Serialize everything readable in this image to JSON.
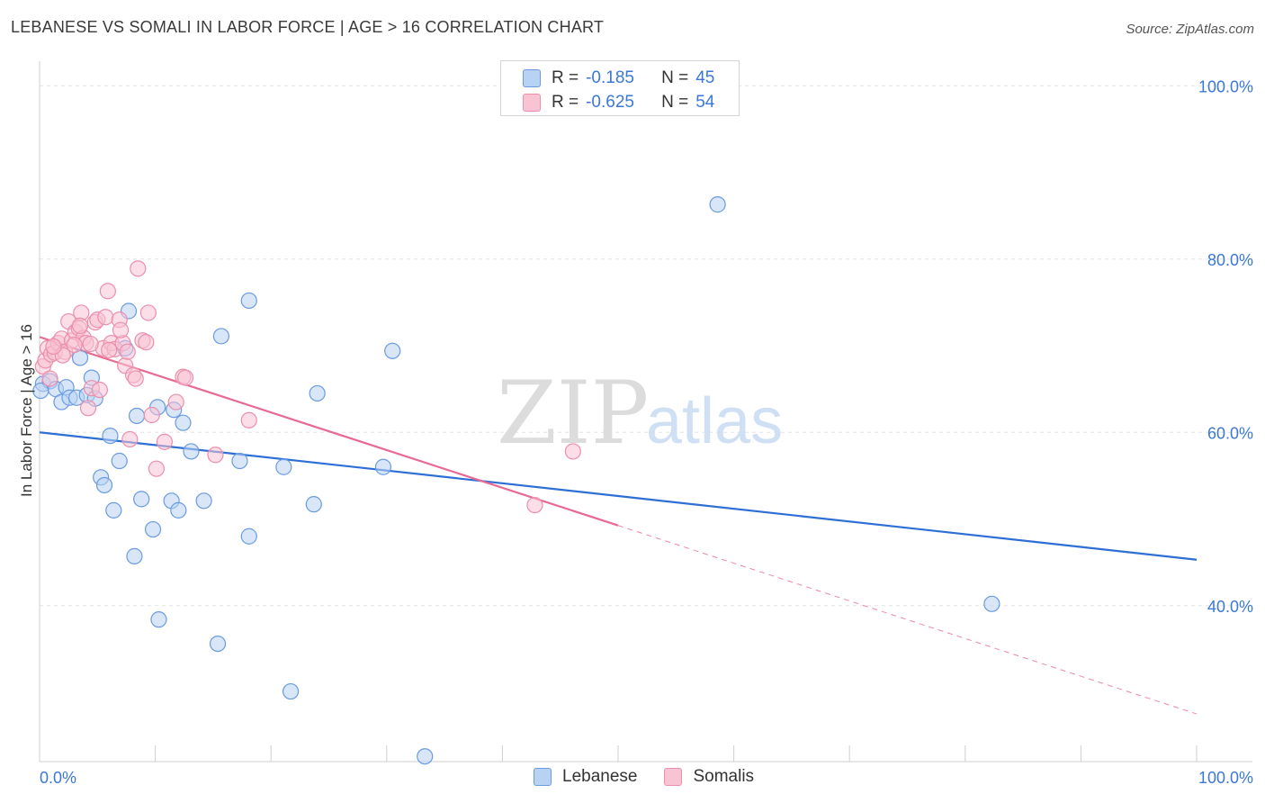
{
  "header": {
    "title": "LEBANESE VS SOMALI IN LABOR FORCE | AGE > 16 CORRELATION CHART",
    "source": "Source: ZipAtlas.com"
  },
  "watermark": {
    "zip": "ZIP",
    "atlas": "atlas"
  },
  "colors": {
    "blue_fill": "#b8d2f3",
    "blue_stroke": "#6a9be0",
    "blue_line": "#2e6fd6",
    "pink_fill": "#f8c3d3",
    "pink_stroke": "#ec8fad",
    "pink_line": "#e86a93",
    "grid": "#e3e3e3",
    "axis_text": "#3b78d6"
  },
  "legend": {
    "rows": [
      {
        "r_label": "R =",
        "r_value": "-0.185",
        "n_label": "N =",
        "n_value": "45",
        "swatch": "blue"
      },
      {
        "r_label": "R =",
        "r_value": "-0.625",
        "n_label": "N =",
        "n_value": "54",
        "swatch": "pink"
      }
    ]
  },
  "bottom_legend": {
    "items": [
      "Lebanese",
      "Somalis"
    ]
  },
  "chart_data": {
    "type": "scatter",
    "title": "LEBANESE VS SOMALI IN LABOR FORCE | AGE > 16 CORRELATION CHART",
    "xlabel": "",
    "ylabel": "In Labor Force | Age > 16",
    "xlim": [
      0,
      100
    ],
    "ylim": [
      22,
      102
    ],
    "x_tick_labels": [
      {
        "value": 0,
        "label": "0.0%"
      },
      {
        "value": 100,
        "label": "100.0%"
      }
    ],
    "y_tick_labels": [
      {
        "value": 100,
        "label": "100.0%"
      },
      {
        "value": 80,
        "label": "80.0%"
      },
      {
        "value": 60,
        "label": "60.0%"
      },
      {
        "value": 40,
        "label": "40.0%"
      }
    ],
    "x_minor_ticks": [
      0,
      10,
      20,
      30,
      40,
      50,
      60,
      70,
      80,
      90,
      100
    ],
    "series": [
      {
        "name": "Lebanese",
        "color": "blue",
        "r": -0.185,
        "n": 45,
        "trend": {
          "x0": 0,
          "y0": 60.0,
          "x1": 100,
          "y1": 45.3,
          "solid_to": 100
        },
        "points": [
          [
            0.3,
            65.6
          ],
          [
            0.9,
            65.9
          ],
          [
            1.4,
            65.0
          ],
          [
            1.9,
            63.5
          ],
          [
            2.3,
            65.2
          ],
          [
            2.6,
            64.0
          ],
          [
            3.2,
            64.0
          ],
          [
            3.5,
            68.6
          ],
          [
            4.1,
            64.3
          ],
          [
            4.5,
            66.3
          ],
          [
            4.8,
            63.9
          ],
          [
            5.3,
            54.8
          ],
          [
            5.6,
            53.9
          ],
          [
            6.1,
            59.6
          ],
          [
            6.4,
            51.0
          ],
          [
            6.9,
            56.7
          ],
          [
            7.4,
            69.7
          ],
          [
            7.7,
            74.0
          ],
          [
            8.2,
            45.7
          ],
          [
            8.4,
            61.9
          ],
          [
            8.8,
            52.3
          ],
          [
            9.8,
            48.8
          ],
          [
            10.2,
            62.9
          ],
          [
            10.3,
            38.4
          ],
          [
            11.4,
            52.1
          ],
          [
            11.6,
            62.6
          ],
          [
            12.0,
            51.0
          ],
          [
            12.4,
            61.1
          ],
          [
            13.1,
            57.8
          ],
          [
            14.2,
            52.1
          ],
          [
            15.4,
            35.6
          ],
          [
            15.7,
            71.1
          ],
          [
            17.3,
            56.7
          ],
          [
            18.1,
            75.2
          ],
          [
            18.1,
            48.0
          ],
          [
            21.1,
            56.0
          ],
          [
            21.7,
            30.1
          ],
          [
            23.7,
            51.7
          ],
          [
            24.0,
            64.5
          ],
          [
            29.7,
            56.0
          ],
          [
            30.5,
            69.4
          ],
          [
            33.3,
            22.6
          ],
          [
            58.6,
            86.3
          ],
          [
            82.3,
            40.2
          ],
          [
            0.1,
            64.8
          ]
        ]
      },
      {
        "name": "Somalis",
        "color": "pink",
        "r": -0.625,
        "n": 54,
        "trend": {
          "x0": 0,
          "y0": 71.0,
          "x1": 100,
          "y1": 27.5,
          "solid_to": 50
        },
        "points": [
          [
            0.3,
            67.6
          ],
          [
            0.5,
            68.3
          ],
          [
            0.7,
            69.7
          ],
          [
            1.0,
            69.0
          ],
          [
            1.3,
            69.2
          ],
          [
            1.6,
            70.3
          ],
          [
            1.9,
            70.8
          ],
          [
            2.2,
            69.3
          ],
          [
            2.5,
            72.8
          ],
          [
            2.8,
            70.6
          ],
          [
            3.1,
            71.6
          ],
          [
            3.4,
            72.0
          ],
          [
            3.6,
            73.8
          ],
          [
            3.8,
            70.9
          ],
          [
            4.0,
            70.3
          ],
          [
            4.2,
            62.8
          ],
          [
            4.5,
            65.1
          ],
          [
            4.8,
            72.7
          ],
          [
            5.0,
            73.0
          ],
          [
            5.2,
            64.9
          ],
          [
            5.5,
            69.7
          ],
          [
            5.7,
            73.3
          ],
          [
            5.9,
            76.3
          ],
          [
            6.2,
            70.3
          ],
          [
            6.5,
            69.6
          ],
          [
            6.9,
            73.0
          ],
          [
            7.2,
            70.3
          ],
          [
            7.4,
            67.7
          ],
          [
            7.6,
            69.3
          ],
          [
            7.8,
            59.2
          ],
          [
            8.1,
            66.6
          ],
          [
            8.3,
            66.2
          ],
          [
            8.5,
            78.9
          ],
          [
            8.9,
            70.6
          ],
          [
            9.2,
            70.4
          ],
          [
            9.4,
            73.8
          ],
          [
            9.7,
            62.0
          ],
          [
            10.1,
            55.8
          ],
          [
            10.8,
            58.9
          ],
          [
            11.8,
            63.5
          ],
          [
            12.4,
            66.4
          ],
          [
            12.6,
            66.3
          ],
          [
            15.2,
            57.4
          ],
          [
            18.1,
            61.4
          ],
          [
            2.0,
            68.9
          ],
          [
            1.2,
            69.9
          ],
          [
            3.0,
            70.1
          ],
          [
            4.4,
            70.2
          ],
          [
            3.5,
            72.3
          ],
          [
            6.0,
            69.5
          ],
          [
            7.0,
            71.8
          ],
          [
            42.8,
            51.6
          ],
          [
            46.1,
            57.8
          ],
          [
            0.9,
            66.2
          ]
        ]
      }
    ]
  }
}
